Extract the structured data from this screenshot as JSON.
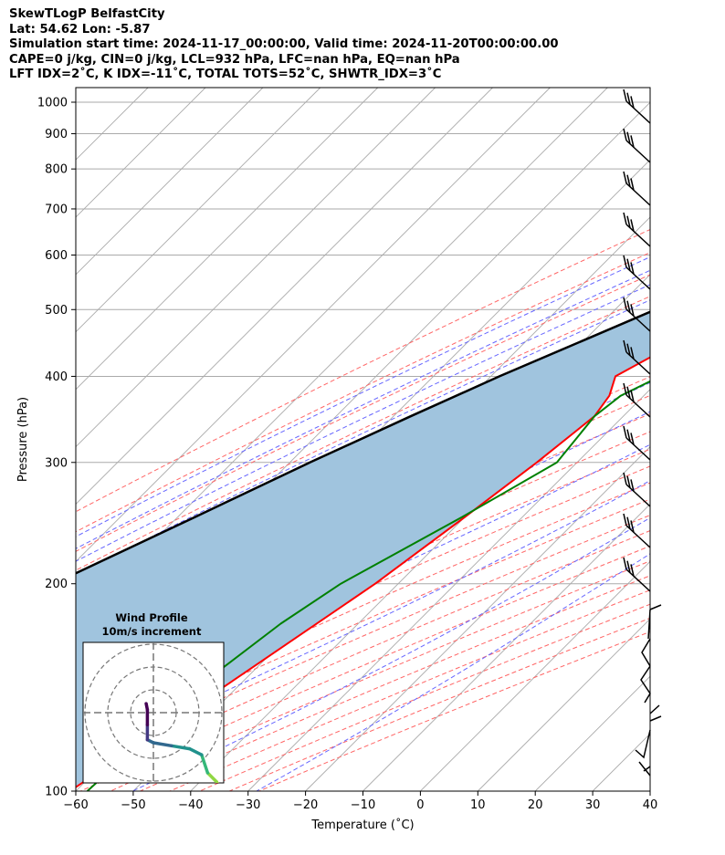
{
  "header": {
    "lines": [
      "SkewTLogP BelfastCity",
      "Lat: 54.62   Lon: -5.87",
      "Simulation start time: 2024-11-17_00:00:00, Valid time: 2024-11-20T00:00:00.00",
      "CAPE=0 j/kg, CIN=0 j/kg, LCL=932 hPa, LFC=nan hPa, EQ=nan hPa",
      "LFT IDX=2˚C, K IDX=-11˚C, TOTAL TOTS=52˚C, SHWTR_IDX=3˚C"
    ]
  },
  "inset": {
    "title": "Wind Profile",
    "subtitle": "10m/s increment"
  },
  "chart_data": [
    {
      "type": "line",
      "kind": "skew-T log-P",
      "xlabel": "Temperature (˚C)",
      "ylabel": "Pressure (hPa)",
      "xlim": [
        -60,
        40
      ],
      "ylim": [
        1050,
        100
      ],
      "yscale": "log",
      "grid": true,
      "xticks": [
        -60,
        -50,
        -40,
        -30,
        -20,
        -10,
        0,
        10,
        20,
        30,
        40
      ],
      "yticks": [
        100,
        200,
        300,
        400,
        500,
        600,
        700,
        800,
        900,
        1000
      ],
      "colors": {
        "temperature": "#ff0000",
        "dewpoint": "#008000",
        "parcel": "#000000",
        "shading": "#a0c4de",
        "dry_adiabats": "#ff6666",
        "moist_adiabats": "#6666ff",
        "isotherms": "#aaaaaa"
      },
      "series": [
        {
          "role": "temperature",
          "p": [
            1000,
            975,
            950,
            925,
            900,
            850,
            800,
            750,
            700,
            650,
            600,
            550,
            500,
            450,
            400,
            375,
            350,
            300,
            250,
            200,
            150,
            100
          ],
          "t": [
            3.4,
            4.5,
            4.0,
            2.5,
            0.8,
            -2.8,
            -6.5,
            -10.0,
            -13.8,
            -17.5,
            -20.7,
            -24.2,
            -28.3,
            -33.2,
            -38.3,
            -36.0,
            -35.0,
            -37.0,
            -40.0,
            -44.0,
            -51.0,
            -61.0
          ]
        },
        {
          "role": "dewpoint",
          "p": [
            1000,
            975,
            950,
            925,
            900,
            850,
            800,
            750,
            700,
            650,
            600,
            550,
            500,
            450,
            400,
            375,
            350,
            300,
            250,
            200,
            175,
            150,
            100
          ],
          "t": [
            -0.5,
            -1.5,
            -3.0,
            -6.0,
            -9.5,
            -16.5,
            -23.0,
            -30.0,
            -37.5,
            -42.0,
            -28.5,
            -28.0,
            -30.0,
            -28.0,
            -30.5,
            -34.0,
            -35.0,
            -33.5,
            -40.5,
            -50.0,
            -53.5,
            -56.0,
            -58.0
          ]
        },
        {
          "role": "parcel",
          "p": [
            1000,
            960,
            932,
            900,
            850,
            800,
            750,
            700,
            650,
            600,
            550,
            500,
            450,
            400,
            350,
            300,
            250,
            200,
            150,
            100
          ],
          "t": [
            3.4,
            0.2,
            -1.0,
            -3.0,
            -6.8,
            -10.8,
            -15.0,
            -19.6,
            -24.6,
            -30.2,
            -36.3,
            -43.0,
            -50.3,
            -58.5,
            -67.0,
            -76.5,
            -87.0,
            -100.0,
            -117.0,
            -142.0
          ]
        }
      ]
    },
    {
      "type": "line",
      "kind": "hodograph",
      "title": "Wind Profile",
      "subtitle": "10m/s increment",
      "u": [
        11,
        10.5,
        9,
        8,
        6,
        3,
        0,
        -1.0,
        -1.0,
        -1.0,
        -1.2
      ],
      "v": [
        -13,
        -11.5,
        -10,
        -7,
        -6,
        -5.5,
        -5,
        -4.5,
        -2.0,
        0.5,
        1.5
      ]
    }
  ]
}
